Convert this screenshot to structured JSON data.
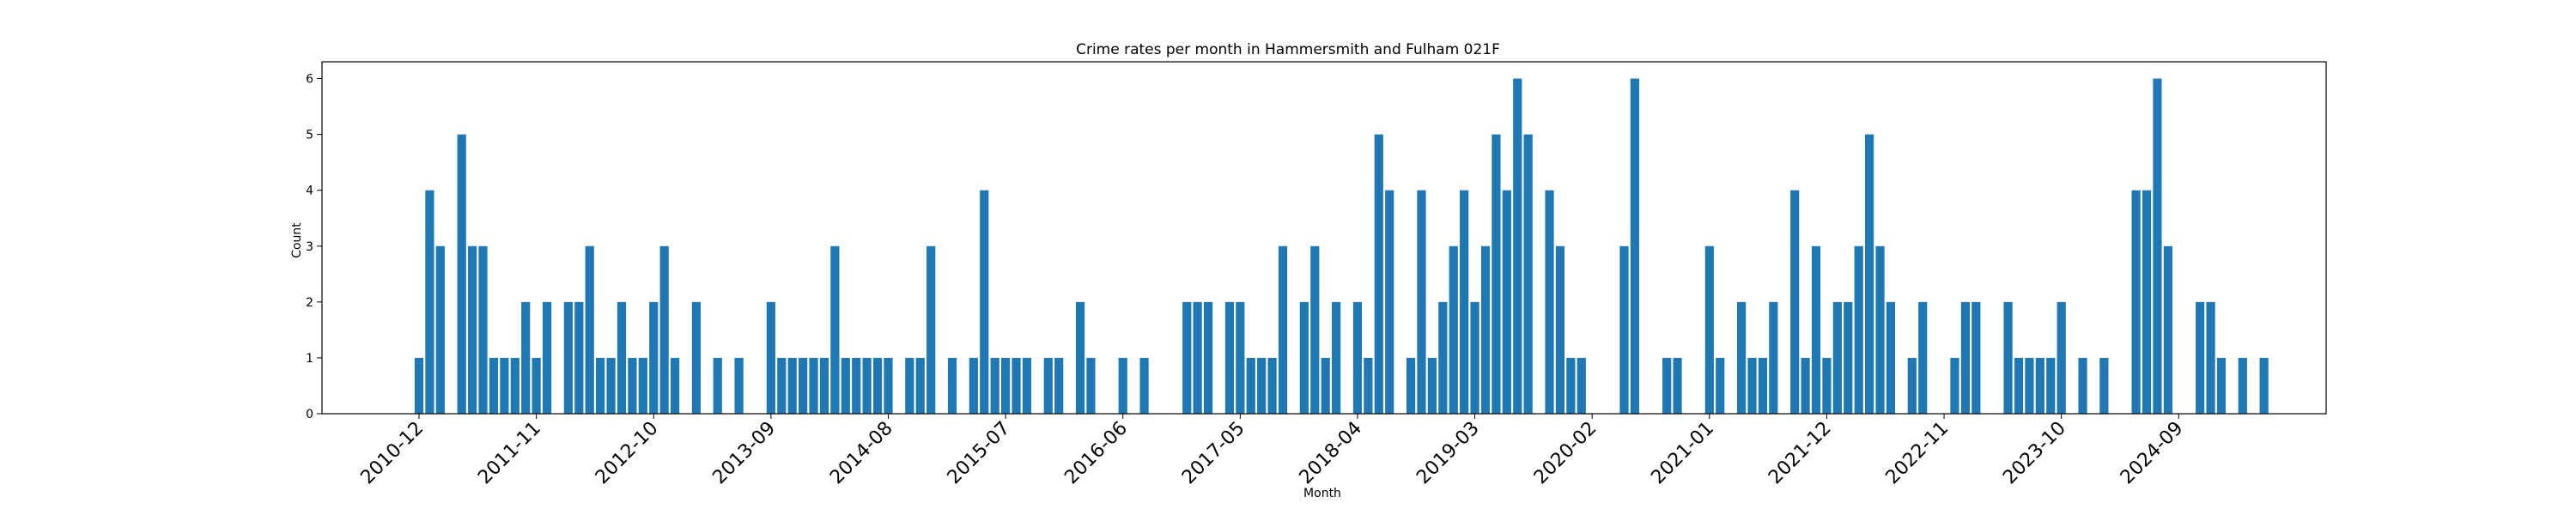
{
  "chart_data": {
    "type": "bar",
    "title": "Crime rates per month in Hammersmith and Fulham 021F",
    "xlabel": "Month",
    "ylabel": "Count",
    "ylim": [
      0,
      6.3
    ],
    "yticks": [
      0,
      1,
      2,
      3,
      4,
      5,
      6
    ],
    "xticks": [
      "2010-12",
      "2011-11",
      "2012-10",
      "2013-09",
      "2014-08",
      "2015-07",
      "2016-06",
      "2017-05",
      "2018-04",
      "2019-03",
      "2020-02",
      "2021-01",
      "2021-12",
      "2022-11",
      "2023-10",
      "2024-09"
    ],
    "start_month": "2010-12",
    "bar_color": "#1f77b4",
    "grid": false,
    "series": [
      {
        "values": [
          1,
          4,
          3,
          0,
          5,
          3,
          3,
          1,
          1,
          1,
          2,
          1,
          2,
          0,
          2,
          2,
          3,
          1,
          1,
          2,
          1,
          1,
          2,
          3,
          1,
          0,
          2,
          0,
          1,
          0,
          1,
          0,
          0,
          2,
          1,
          1,
          1,
          1,
          1,
          3,
          1,
          1,
          1,
          1,
          1,
          0,
          1,
          1,
          3,
          0,
          1,
          0,
          1,
          4,
          1,
          1,
          1,
          1,
          0,
          1,
          1,
          0,
          2,
          1,
          0,
          0,
          1,
          0,
          1,
          0,
          0,
          0,
          2,
          2,
          2,
          0,
          2,
          2,
          1,
          1,
          1,
          3,
          0,
          2,
          3,
          1,
          2,
          0,
          2,
          1,
          5,
          4,
          0,
          1,
          4,
          1,
          2,
          3,
          4,
          2,
          3,
          5,
          4,
          6,
          5,
          0,
          4,
          3,
          1,
          1,
          0,
          0,
          0,
          3,
          6,
          0,
          0,
          1,
          1,
          0,
          0,
          3,
          1,
          0,
          2,
          1,
          1,
          2,
          0,
          4,
          1,
          3,
          1,
          2,
          2,
          3,
          5,
          3,
          2,
          0,
          1,
          2,
          0,
          0,
          1,
          2,
          2,
          0,
          0,
          2,
          1,
          1,
          1,
          1,
          2,
          0,
          1,
          0,
          1,
          0,
          0,
          4,
          4,
          6,
          3,
          0,
          0,
          2,
          2,
          1,
          0,
          1,
          0,
          1
        ]
      }
    ]
  }
}
